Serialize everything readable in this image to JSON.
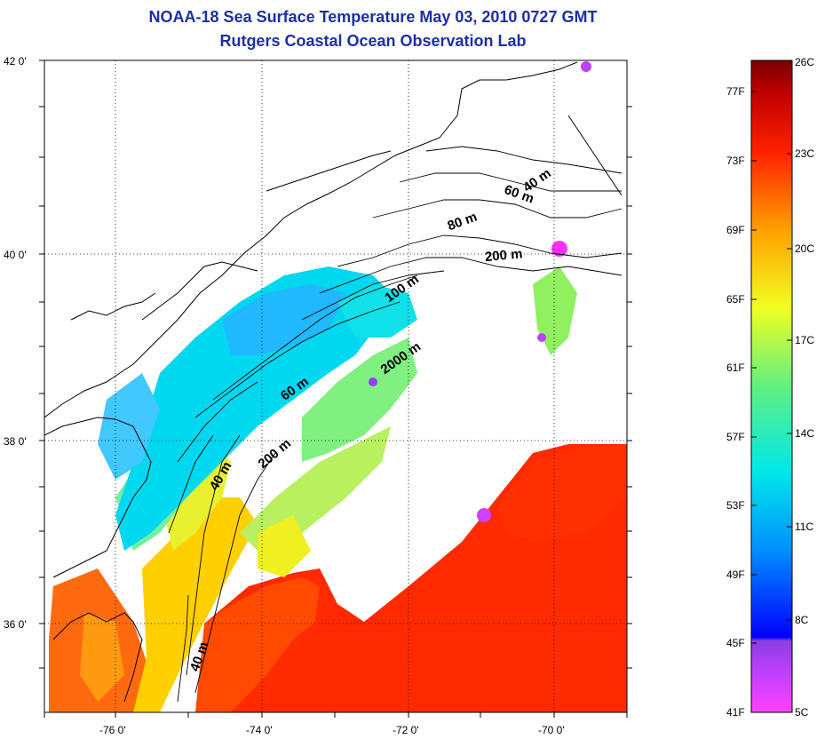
{
  "title": {
    "line1": "NOAA-18 Sea Surface Temperature May 03, 2010 0727 GMT",
    "line2": "Rutgers Coastal Ocean Observation Lab"
  },
  "map": {
    "lat_labels": [
      "42 0'",
      "40 0'",
      "38 0'",
      "36 0'"
    ],
    "lon_labels": [
      "-76 0'",
      "-74 0'",
      "-72 0'",
      "-70 0'"
    ],
    "contour_labels": [
      "40 m",
      "60 m",
      "80 m",
      "200 m",
      "100 m",
      "2000 m",
      "60 m",
      "200 m",
      "40 m",
      "40 m"
    ]
  },
  "colorbar": {
    "fahrenheit_labels": [
      "77F",
      "73F",
      "69F",
      "65F",
      "61F",
      "57F",
      "53F",
      "49F",
      "45F",
      "41F"
    ],
    "celsius_labels": [
      "26C",
      "23C",
      "20C",
      "17C",
      "14C",
      "11C",
      "8C",
      "5C"
    ],
    "colors": [
      "#ff40ff",
      "#8a3ee0",
      "#0000ff",
      "#0090ff",
      "#00e8e8",
      "#60f080",
      "#c8f020",
      "#ffe000",
      "#ff9000",
      "#ff2000",
      "#c00000",
      "#780000"
    ]
  }
}
